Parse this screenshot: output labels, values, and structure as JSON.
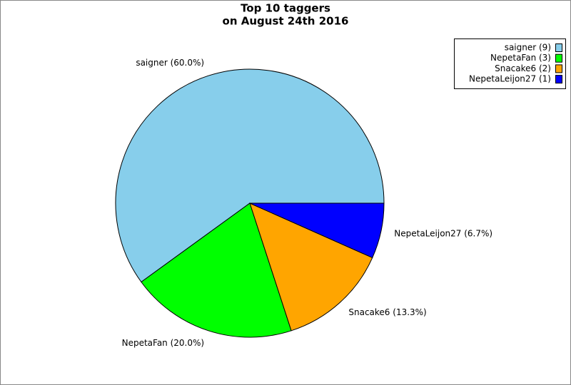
{
  "chart_data": {
    "type": "pie",
    "title": [
      "Top 10 taggers",
      "on August 24th 2016"
    ],
    "values": [
      9,
      3,
      2,
      1
    ],
    "colors": [
      "#87ceeb",
      "#00ff00",
      "#ffa500",
      "#0000ff"
    ],
    "legend_labels": [
      "saigner (9)",
      "NepetaFan (3)",
      "Snacake6 (2)",
      "NepetaLeijon27 (1)"
    ],
    "slice_labels": [
      "saigner (60.0%)",
      "NepetaFan (20.0%)",
      "Snacake6 (13.3%)",
      "NepetaLeijon27 (6.7%)"
    ],
    "legend": "top-right"
  }
}
